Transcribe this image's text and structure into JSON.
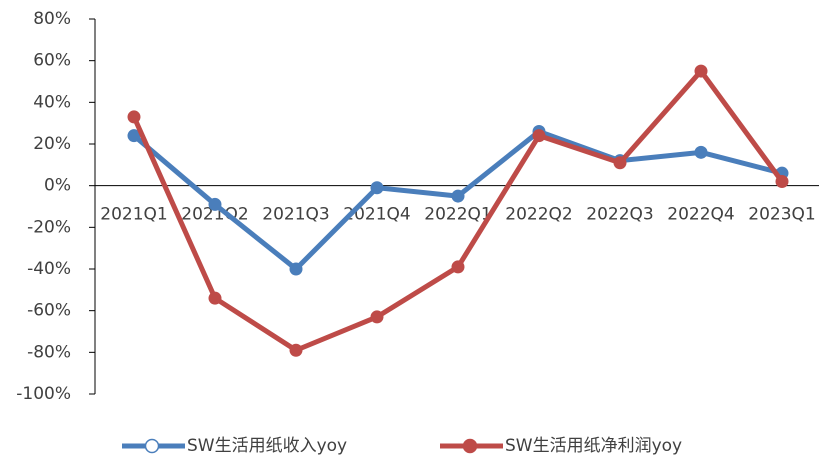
{
  "chart_data": {
    "type": "line",
    "categories": [
      "2021Q1",
      "2021Q2",
      "2021Q3",
      "2021Q4",
      "2022Q1",
      "2022Q2",
      "2022Q3",
      "2022Q4",
      "2023Q1"
    ],
    "series": [
      {
        "name": "SW生活用纸收入yoy",
        "color": "#4a7ebb",
        "values": [
          24,
          -9,
          -40,
          -1,
          -5,
          26,
          12,
          16,
          6
        ]
      },
      {
        "name": "SW生活用纸净利润yoy",
        "color": "#be4b48",
        "values": [
          33,
          -54,
          -79,
          -63,
          -39,
          24,
          11,
          55,
          2
        ]
      }
    ],
    "ylim": [
      -100,
      80
    ],
    "yticks": [
      {
        "value": 80,
        "label": "80%"
      },
      {
        "value": 60,
        "label": "60%"
      },
      {
        "value": 40,
        "label": "40%"
      },
      {
        "value": 20,
        "label": "20%"
      },
      {
        "value": 0,
        "label": "0%"
      },
      {
        "value": -20,
        "label": "-20%"
      },
      {
        "value": -40,
        "label": "-40%"
      },
      {
        "value": -60,
        "label": "-60%"
      },
      {
        "value": -80,
        "label": "-80%"
      },
      {
        "value": -100,
        "label": "-100%"
      }
    ],
    "legend": "bottom"
  }
}
